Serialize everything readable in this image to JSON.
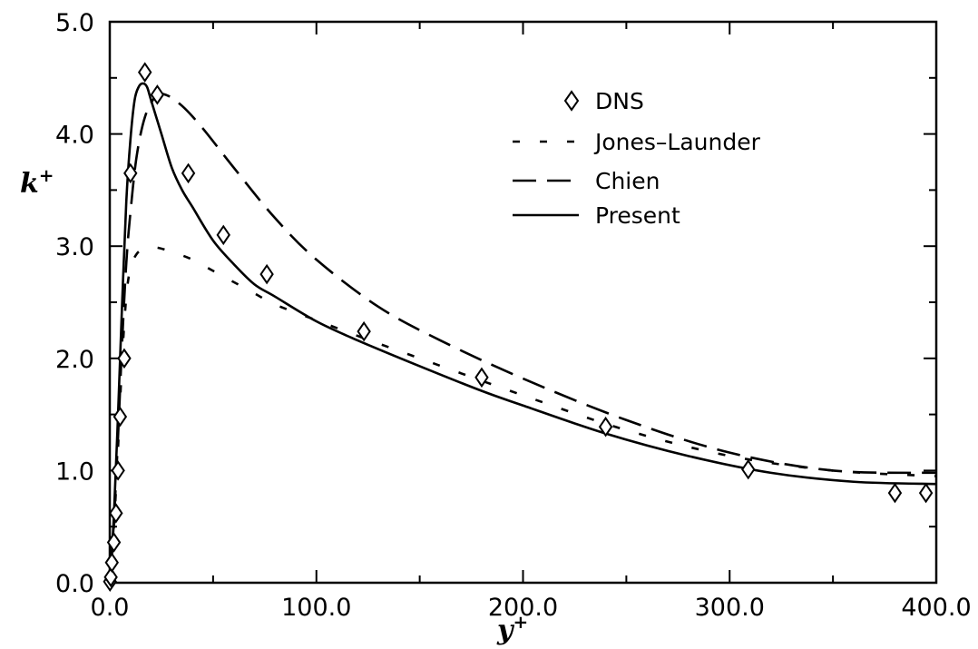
{
  "chart_data": {
    "type": "line",
    "title": "",
    "xlabel": "y",
    "xlabel_sup": "+",
    "ylabel": "k",
    "ylabel_sup": "+",
    "xlim": [
      0,
      400
    ],
    "ylim": [
      0,
      5
    ],
    "x_ticks": [
      0,
      100,
      200,
      300,
      400
    ],
    "x_tick_labels": [
      "0.0",
      "100.0",
      "200.0",
      "300.0",
      "400.0"
    ],
    "y_ticks": [
      0,
      1,
      2,
      3,
      4,
      5
    ],
    "y_tick_labels": [
      "0.0",
      "1.0",
      "2.0",
      "3.0",
      "4.0",
      "5.0"
    ],
    "grid": false,
    "legend_position": "top-right",
    "colors": {
      "ink": "#000000",
      "background": "#ffffff"
    },
    "series": [
      {
        "name": "DNS",
        "style": "diamond-markers",
        "x": [
          0.1,
          0.5,
          1,
          2,
          3,
          4,
          5,
          7,
          10,
          17,
          23,
          38,
          55,
          76,
          123,
          180,
          240,
          309,
          380,
          395
        ],
        "y": [
          0.01,
          0.05,
          0.18,
          0.36,
          0.62,
          1.0,
          1.48,
          2.0,
          3.65,
          4.55,
          4.35,
          3.65,
          3.1,
          2.75,
          2.24,
          1.83,
          1.39,
          1.01,
          0.8,
          0.8
        ]
      },
      {
        "name": "Jones–Launder",
        "style": "short-dash",
        "x": [
          0,
          2,
          4,
          6,
          8,
          10,
          13,
          17,
          22,
          30,
          40,
          50,
          60,
          70,
          80,
          100,
          120,
          150,
          200,
          250,
          300,
          350,
          400
        ],
        "y": [
          0,
          0.5,
          1.2,
          2.0,
          2.55,
          2.8,
          2.93,
          2.98,
          2.99,
          2.95,
          2.88,
          2.78,
          2.68,
          2.58,
          2.48,
          2.34,
          2.2,
          2.0,
          1.67,
          1.36,
          1.13,
          1.0,
          0.95
        ]
      },
      {
        "name": "Chien",
        "style": "long-dash",
        "x": [
          0,
          2,
          4,
          6,
          8,
          10,
          13,
          17,
          22,
          27,
          35,
          45,
          60,
          80,
          100,
          130,
          160,
          200,
          250,
          300,
          350,
          400
        ],
        "y": [
          0,
          0.55,
          1.3,
          2.15,
          2.85,
          3.3,
          3.8,
          4.15,
          4.33,
          4.35,
          4.25,
          4.05,
          3.7,
          3.25,
          2.88,
          2.46,
          2.16,
          1.82,
          1.45,
          1.16,
          1.0,
          0.98
        ]
      },
      {
        "name": "Present",
        "style": "solid",
        "x": [
          0,
          2,
          4,
          6,
          8,
          10,
          12,
          14,
          16,
          18,
          20,
          25,
          30,
          35,
          40,
          50,
          60,
          70,
          80,
          100,
          120,
          150,
          180,
          200,
          240,
          280,
          320,
          360,
          400
        ],
        "y": [
          0,
          0.6,
          1.5,
          2.5,
          3.4,
          3.95,
          4.3,
          4.42,
          4.45,
          4.42,
          4.3,
          4.0,
          3.7,
          3.5,
          3.35,
          3.05,
          2.84,
          2.66,
          2.55,
          2.33,
          2.16,
          1.93,
          1.71,
          1.58,
          1.33,
          1.13,
          0.98,
          0.9,
          0.88
        ]
      }
    ]
  }
}
